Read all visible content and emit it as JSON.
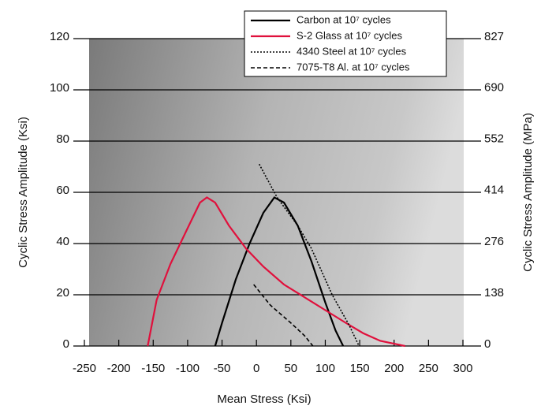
{
  "chart_data": {
    "type": "line",
    "xlabel": "Mean Stress (Ksi)",
    "ylabel": "Cyclic Stress Amplitude (Ksi)",
    "y2label": "Cyclic Stress Amplitude (MPa)",
    "xlim": [
      -250,
      300
    ],
    "xticks": [
      -250,
      -200,
      -150,
      -100,
      -50,
      0,
      50,
      100,
      150,
      200,
      250,
      300
    ],
    "ylim": [
      0,
      120
    ],
    "yticks": [
      0,
      20,
      40,
      60,
      80,
      100,
      120
    ],
    "y2lim": [
      0,
      827
    ],
    "y2ticks": [
      0,
      138,
      276,
      414,
      552,
      690,
      827
    ],
    "grid": true,
    "legend": "top-right",
    "series": [
      {
        "name": "Carbon at 10⁷ cycles",
        "color": "#000000",
        "dash": "solid",
        "x": [
          -60,
          -50,
          -30,
          -10,
          10,
          26,
          40,
          60,
          80,
          100,
          115,
          126
        ],
        "values": [
          0,
          9,
          26,
          40,
          52,
          58,
          56,
          47,
          33,
          17,
          6,
          0
        ]
      },
      {
        "name": "S-2 Glass at 10⁷ cycles",
        "color": "#e0103c",
        "dash": "solid",
        "x": [
          -158,
          -145,
          -125,
          -100,
          -82,
          -72,
          -60,
          -40,
          -15,
          10,
          40,
          70,
          100,
          130,
          155,
          180,
          216
        ],
        "values": [
          0,
          18,
          32,
          46,
          56,
          58,
          56,
          47,
          38,
          31,
          24,
          19,
          14,
          9,
          5,
          2,
          0
        ]
      },
      {
        "name": "4340 Steel at 10⁷ cycles",
        "color": "#000000",
        "dash": "dotted",
        "x": [
          4,
          30,
          60,
          80,
          110,
          135,
          149
        ],
        "values": [
          71,
          58,
          47,
          38,
          20,
          8,
          0
        ]
      },
      {
        "name": "7075-T8 Al. at 10⁷ cycles",
        "color": "#000000",
        "dash": "dashed",
        "x": [
          -4,
          20,
          50,
          70,
          82
        ],
        "values": [
          24,
          16,
          9,
          4,
          0
        ]
      }
    ]
  }
}
